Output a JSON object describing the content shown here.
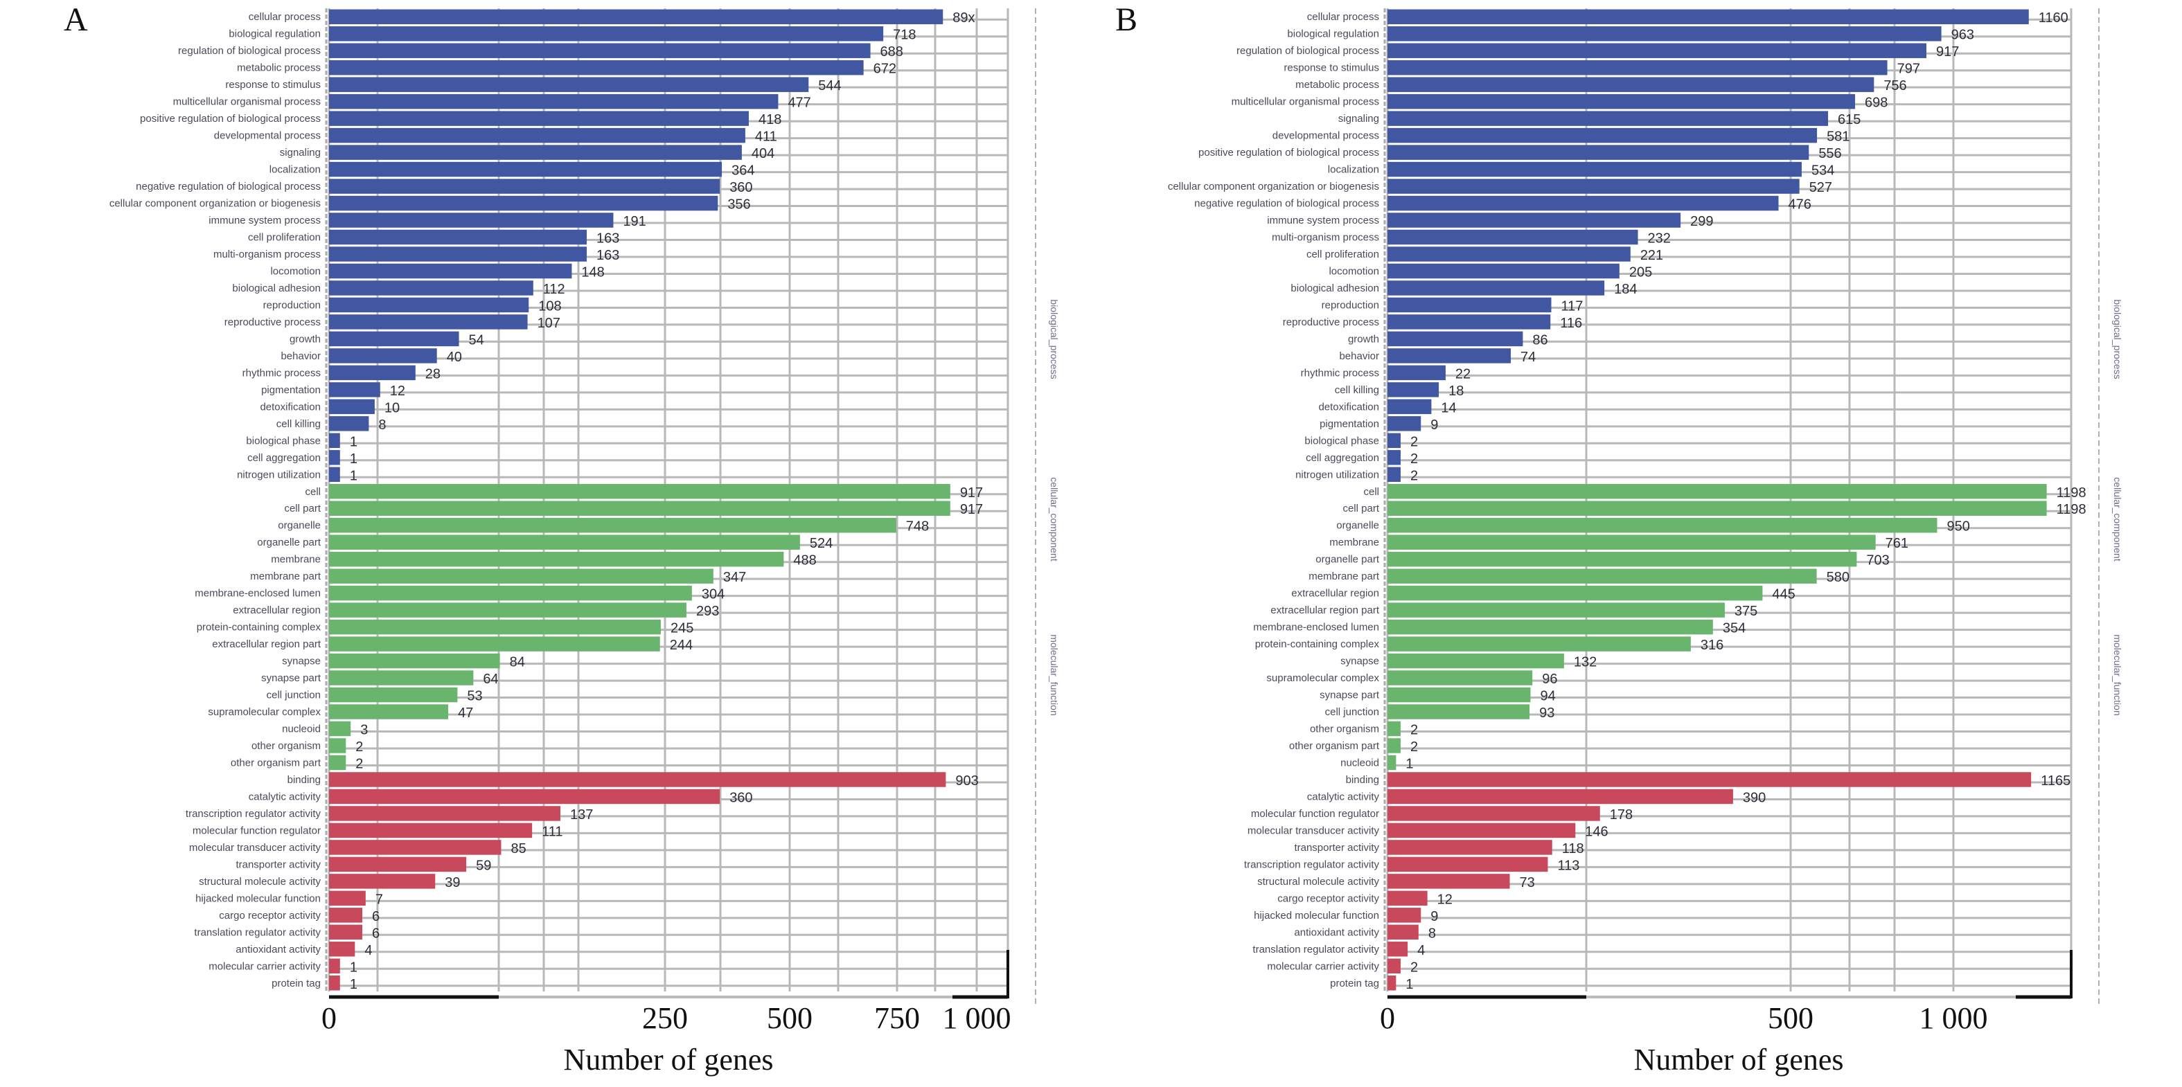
{
  "figure": {
    "colors": {
      "biological_process": "#4257a1",
      "cellular_component": "#6ab56e",
      "molecular_function": "#c9495c",
      "grid": "#b8b8b8"
    }
  },
  "chart_data": [
    {
      "type": "bar",
      "orientation": "horizontal",
      "panel": "A",
      "title": "",
      "xlabel": "Number of genes",
      "ylabel": "",
      "x_scale": "non-linear (compressed)",
      "xticks": [
        0,
        250,
        500,
        750,
        1000
      ],
      "xtick_labels": [
        "0",
        "250",
        "500",
        "750",
        "1 000"
      ],
      "grid": true,
      "groups": [
        {
          "name": "biological_process",
          "color": "#4257a1",
          "categories": [
            "cellular process",
            "biological regulation",
            "regulation of biological process",
            "metabolic process",
            "response to stimulus",
            "multicellular organismal process",
            "positive regulation of biological process",
            "developmental process",
            "signaling",
            "localization",
            "negative regulation of biological process",
            "cellular component organization or biogenesis",
            "immune system process",
            "cell proliferation",
            "multi-organism process",
            "locomotion",
            "biological adhesion",
            "reproduction",
            "reproductive process",
            "growth",
            "behavior",
            "rhythmic process",
            "pigmentation",
            "detoxification",
            "cell killing",
            "biological phase",
            "cell aggregation",
            "nitrogen utilization"
          ],
          "values": [
            894,
            718,
            688,
            672,
            544,
            477,
            418,
            411,
            404,
            364,
            360,
            356,
            191,
            163,
            163,
            148,
            112,
            108,
            107,
            54,
            40,
            28,
            12,
            10,
            8,
            1,
            1,
            1
          ],
          "value_labels": [
            "89x",
            "718",
            "688",
            "672",
            "544",
            "477",
            "418",
            "411",
            "404",
            "364",
            "360",
            "356",
            "191",
            "163",
            "163",
            "148",
            "112",
            "108",
            "107",
            "54",
            "40",
            "28",
            "12",
            "10",
            "8",
            "1",
            "1",
            "1"
          ]
        },
        {
          "name": "cellular_component",
          "color": "#6ab56e",
          "categories": [
            "cell",
            "cell part",
            "organelle",
            "organelle part",
            "membrane",
            "membrane part",
            "membrane-enclosed lumen",
            "extracellular region",
            "protein-containing complex",
            "extracellular region part",
            "synapse",
            "synapse part",
            "cell junction",
            "supramolecular complex",
            "nucleoid",
            "other organism",
            "other organism part"
          ],
          "values": [
            917,
            917,
            748,
            524,
            488,
            347,
            304,
            293,
            245,
            244,
            84,
            64,
            53,
            47,
            3,
            2,
            2
          ],
          "value_labels": [
            "917",
            "917",
            "748",
            "524",
            "488",
            "347",
            "304",
            "293",
            "245",
            "244",
            "84",
            "64",
            "53",
            "47",
            "3",
            "2",
            "2"
          ]
        },
        {
          "name": "molecular_function",
          "color": "#c9495c",
          "categories": [
            "binding",
            "catalytic activity",
            "transcription regulator activity",
            "molecular function regulator",
            "molecular transducer activity",
            "transporter activity",
            "structural molecule activity",
            "hijacked molecular function",
            "cargo receptor activity",
            "translation regulator activity",
            "antioxidant activity",
            "molecular carrier activity",
            "protein tag"
          ],
          "values": [
            903,
            360,
            137,
            111,
            85,
            59,
            39,
            7,
            6,
            6,
            4,
            1,
            1
          ],
          "value_labels": [
            "903",
            "360",
            "137",
            "111",
            "85",
            "59",
            "39",
            "7",
            "6",
            "6",
            "4",
            "1",
            "1"
          ]
        }
      ],
      "side_labels": [
        "biological_process",
        "cellular_component",
        "molecular_function"
      ]
    },
    {
      "type": "bar",
      "orientation": "horizontal",
      "panel": "B",
      "title": "",
      "xlabel": "Number of genes",
      "ylabel": "",
      "x_scale": "non-linear (compressed)",
      "xticks": [
        0,
        500,
        1000
      ],
      "xtick_labels": [
        "0",
        "500",
        "1 000"
      ],
      "grid": true,
      "groups": [
        {
          "name": "biological_process",
          "color": "#4257a1",
          "categories": [
            "cellular process",
            "biological regulation",
            "regulation of biological process",
            "response to stimulus",
            "metabolic process",
            "multicellular organismal process",
            "signaling",
            "developmental process",
            "positive regulation of biological process",
            "localization",
            "cellular component organization or biogenesis",
            "negative regulation of biological process",
            "immune system process",
            "multi-organism process",
            "cell proliferation",
            "locomotion",
            "biological adhesion",
            "reproduction",
            "reproductive process",
            "growth",
            "behavior",
            "rhythmic process",
            "cell killing",
            "detoxification",
            "pigmentation",
            "biological phase",
            "cell aggregation",
            "nitrogen utilization"
          ],
          "values": [
            1160,
            963,
            917,
            797,
            756,
            698,
            615,
            581,
            556,
            534,
            527,
            476,
            299,
            232,
            221,
            205,
            184,
            117,
            116,
            86,
            74,
            22,
            18,
            14,
            9,
            2,
            2,
            2
          ],
          "value_labels": [
            "1160",
            "963",
            "917",
            "797",
            "756",
            "698",
            "615",
            "581",
            "556",
            "534",
            "527",
            "476",
            "299",
            "232",
            "221",
            "205",
            "184",
            "117",
            "116",
            "86",
            "74",
            "22",
            "18",
            "14",
            "9",
            "2",
            "2",
            "2"
          ]
        },
        {
          "name": "cellular_component",
          "color": "#6ab56e",
          "categories": [
            "cell",
            "cell part",
            "organelle",
            "membrane",
            "organelle part",
            "membrane part",
            "extracellular region",
            "extracellular region part",
            "membrane-enclosed lumen",
            "protein-containing complex",
            "synapse",
            "supramolecular complex",
            "synapse part",
            "cell junction",
            "other organism",
            "other organism part",
            "nucleoid"
          ],
          "values": [
            1198,
            1198,
            950,
            761,
            703,
            580,
            445,
            375,
            354,
            316,
            132,
            96,
            94,
            93,
            2,
            2,
            1
          ],
          "value_labels": [
            "1198",
            "1198",
            "950",
            "761",
            "703",
            "580",
            "445",
            "375",
            "354",
            "316",
            "132",
            "96",
            "94",
            "93",
            "2",
            "2",
            "1"
          ]
        },
        {
          "name": "molecular_function",
          "color": "#c9495c",
          "categories": [
            "binding",
            "catalytic activity",
            "molecular function regulator",
            "molecular transducer activity",
            "transporter activity",
            "transcription regulator activity",
            "structural molecule activity",
            "cargo receptor activity",
            "hijacked molecular function",
            "antioxidant activity",
            "translation regulator activity",
            "molecular carrier activity",
            "protein tag"
          ],
          "values": [
            1165,
            390,
            178,
            146,
            118,
            113,
            73,
            12,
            9,
            8,
            4,
            2,
            1
          ],
          "value_labels": [
            "1165",
            "390",
            "178",
            "146",
            "118",
            "113",
            "73",
            "12",
            "9",
            "8",
            "4",
            "2",
            "1"
          ]
        }
      ],
      "side_labels": [
        "biological_process",
        "cellular_component",
        "molecular_function"
      ]
    }
  ]
}
